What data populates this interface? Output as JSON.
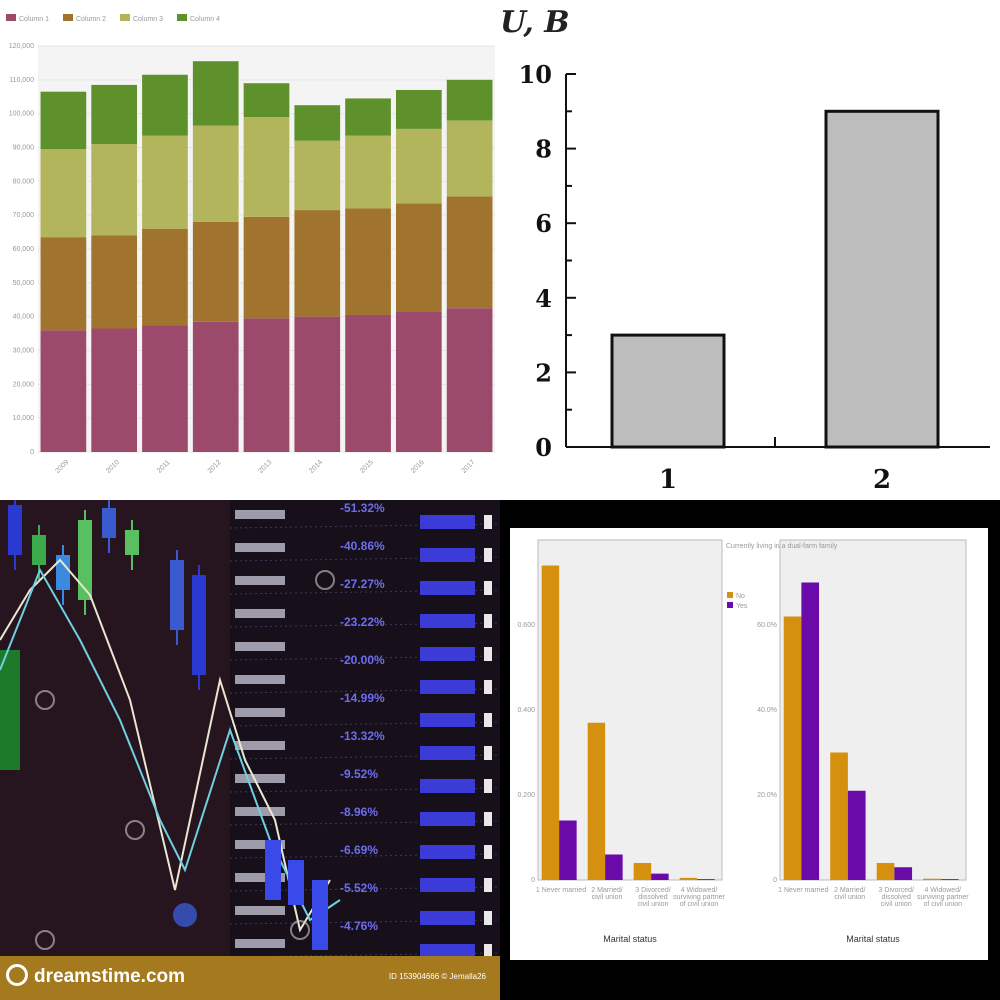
{
  "chart_data": [
    {
      "type": "bar",
      "stacked": true,
      "categories": [
        "2009",
        "2010",
        "2011",
        "2012",
        "2013",
        "2014",
        "2015",
        "2016",
        "2017"
      ],
      "series": [
        {
          "name": "Column 1",
          "color": "#9c4a6b",
          "values": [
            36000,
            36500,
            37500,
            38500,
            39500,
            40000,
            40500,
            41500,
            42500
          ]
        },
        {
          "name": "Column 2",
          "color": "#a0742e",
          "values": [
            27500,
            27500,
            28500,
            29500,
            30000,
            31500,
            31500,
            32000,
            33000
          ]
        },
        {
          "name": "Column 3",
          "color": "#b2b55c",
          "values": [
            26000,
            27000,
            27500,
            28500,
            29500,
            20500,
            21500,
            22000,
            22500
          ]
        },
        {
          "name": "Column 4",
          "color": "#5e912c",
          "values": [
            17000,
            17500,
            18000,
            19000,
            10000,
            10500,
            11000,
            11500,
            12000
          ]
        }
      ],
      "yticks": [
        "0",
        "10,000",
        "20,000",
        "30,000",
        "40,000",
        "50,000",
        "60,000",
        "70,000",
        "80,000",
        "90,000",
        "100,000",
        "110,000",
        "120,000"
      ],
      "ylim": [
        0,
        120000
      ],
      "legend_position": "top-left",
      "grid": true
    },
    {
      "type": "bar",
      "categories": [
        "1",
        "2"
      ],
      "values": [
        3,
        9
      ],
      "ylabel": "U, B",
      "ylim": [
        0,
        10
      ],
      "yticks": [
        "0",
        "2",
        "4",
        "6",
        "8",
        "10"
      ],
      "bar_color": "#bdbdbd"
    },
    {
      "type": "other",
      "percent_labels": [
        "-51.32%",
        "-40.86%",
        "-27.27%",
        "-23.22%",
        "-20.00%",
        "-14.99%",
        "-13.32%",
        "-9.52%",
        "-8.96%",
        "-6.69%",
        "-5.52%",
        "-4.76%"
      ],
      "footer_brand": "dreamstime.com",
      "footer_id": "ID 153904666 © Jemalla26"
    },
    {
      "type": "bar",
      "panels": [
        {
          "categories": [
            "1 Never married",
            "2 Married/\ncivil union",
            "3 Divorced/\ndissolved\ncivil union",
            "4 Widowed/\nsurviving partner\nof civil union"
          ],
          "series": [
            {
              "name": "No",
              "color": "#d4900e",
              "values": [
                0.74,
                0.37,
                0.04,
                0.005
              ]
            },
            {
              "name": "Yes",
              "color": "#6a0aa8",
              "values": [
                0.14,
                0.06,
                0.015,
                0.002
              ]
            }
          ],
          "ylim": [
            0,
            0.8
          ],
          "yticks": [
            "0",
            "0.200",
            "0.400",
            "0.600"
          ],
          "xlabel": "Marital status"
        },
        {
          "categories": [
            "1 Never married",
            "2 Married/\ncivil union",
            "3 Divorced/\ndissolved\ncivil union",
            "4 Widowed/\nsurviving partner\nof civil union"
          ],
          "series": [
            {
              "name": "No",
              "color": "#d4900e",
              "values": [
                0.62,
                0.3,
                0.04,
                0.003
              ]
            },
            {
              "name": "Yes",
              "color": "#6a0aa8",
              "values": [
                0.7,
                0.21,
                0.03,
                0.002
              ]
            }
          ],
          "ylim": [
            0,
            0.8
          ],
          "yticks": [
            "0",
            "20.0%",
            "40.0%",
            "60.0%"
          ],
          "xlabel": "Marital status"
        }
      ],
      "legend_title": "Currently living in a dual-farm family",
      "legend_items": [
        "No",
        "Yes"
      ]
    }
  ]
}
